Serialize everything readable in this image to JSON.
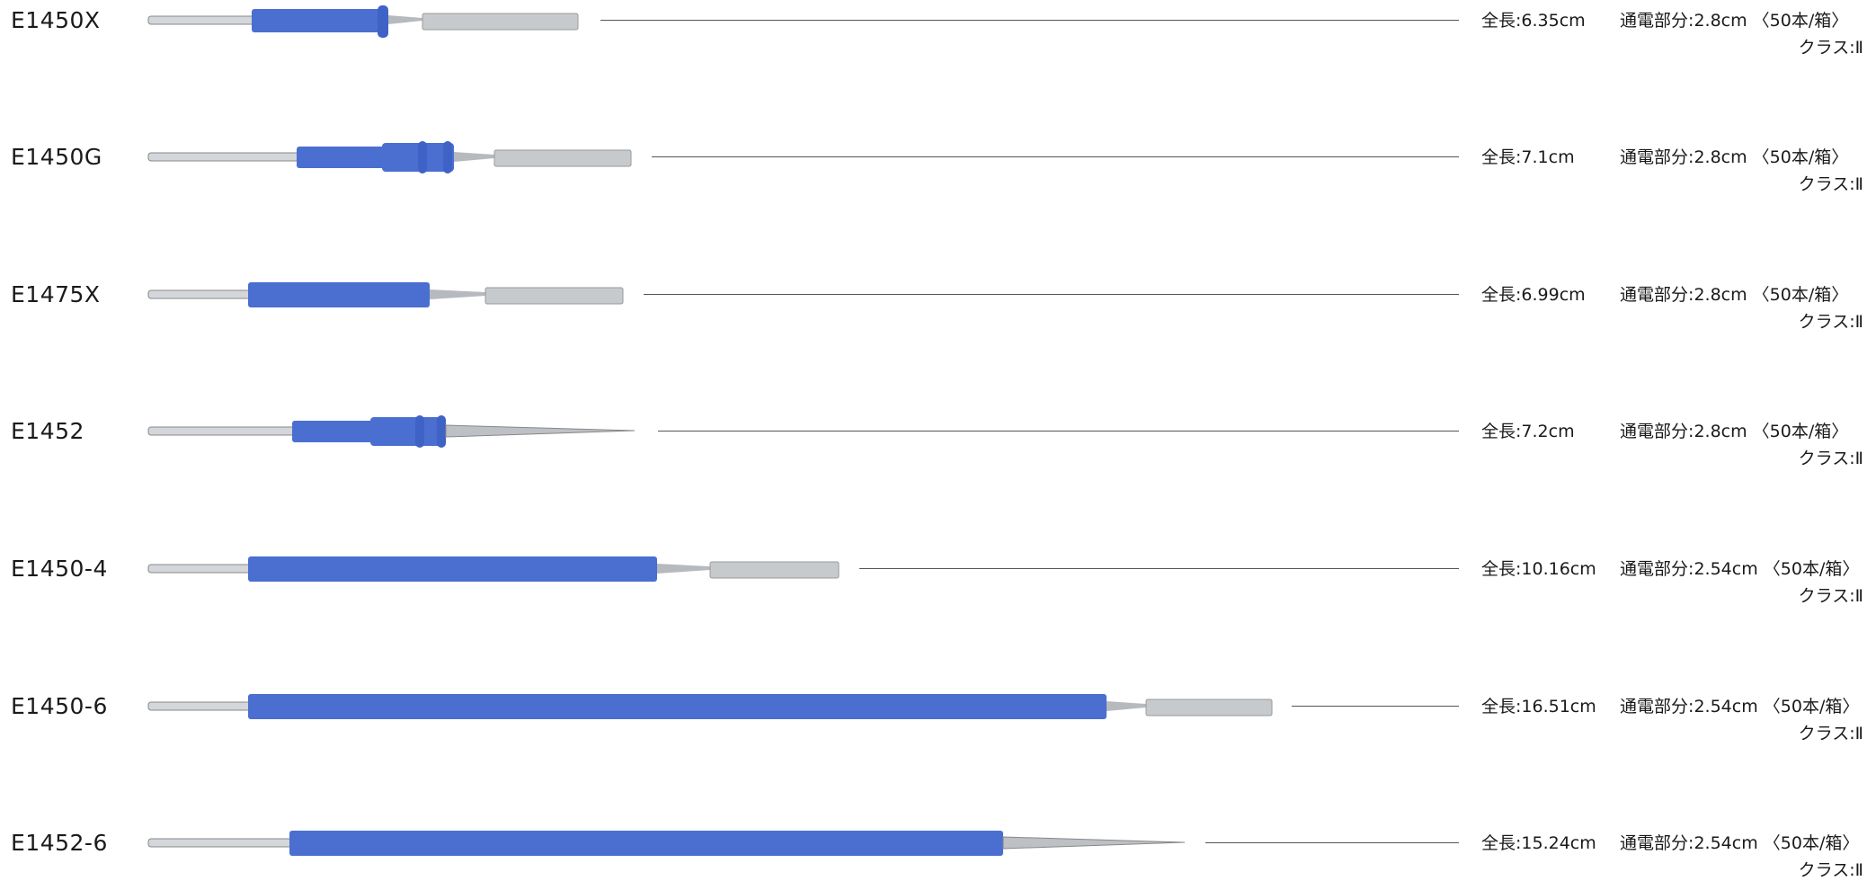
{
  "colors": {
    "shaft_blue": "#4a6fd1",
    "metal": "#c9cdd2",
    "leader": "#555555"
  },
  "products": [
    {
      "code": "E1450X",
      "length": "全長:6.35cm",
      "conductive": "通電部分:2.8cm",
      "quantity": "〈50本/箱〉",
      "class": "クラス:Ⅱ",
      "tip": "blade"
    },
    {
      "code": "E1450G",
      "length": "全長:7.1cm",
      "conductive": "通電部分:2.8cm",
      "quantity": "〈50本/箱〉",
      "class": "クラス:Ⅱ",
      "tip": "blade"
    },
    {
      "code": "E1475X",
      "length": "全長:6.99cm",
      "conductive": "通電部分:2.8cm",
      "quantity": "〈50本/箱〉",
      "class": "クラス:Ⅱ",
      "tip": "blade"
    },
    {
      "code": "E1452",
      "length": "全長:7.2cm",
      "conductive": "通電部分:2.8cm",
      "quantity": "〈50本/箱〉",
      "class": "クラス:Ⅱ",
      "tip": "needle"
    },
    {
      "code": "E1450-4",
      "length": "全長:10.16cm",
      "conductive": "通電部分:2.54cm",
      "quantity": "〈50本/箱〉",
      "class": "クラス:Ⅱ",
      "tip": "blade"
    },
    {
      "code": "E1450-6",
      "length": "全長:16.51cm",
      "conductive": "通電部分:2.54cm",
      "quantity": "〈50本/箱〉",
      "class": "クラス:Ⅱ",
      "tip": "blade"
    },
    {
      "code": "E1452-6",
      "length": "全長:15.24cm",
      "conductive": "通電部分:2.54cm",
      "quantity": "〈50本/箱〉",
      "class": "クラス:Ⅱ",
      "tip": "needle"
    }
  ]
}
